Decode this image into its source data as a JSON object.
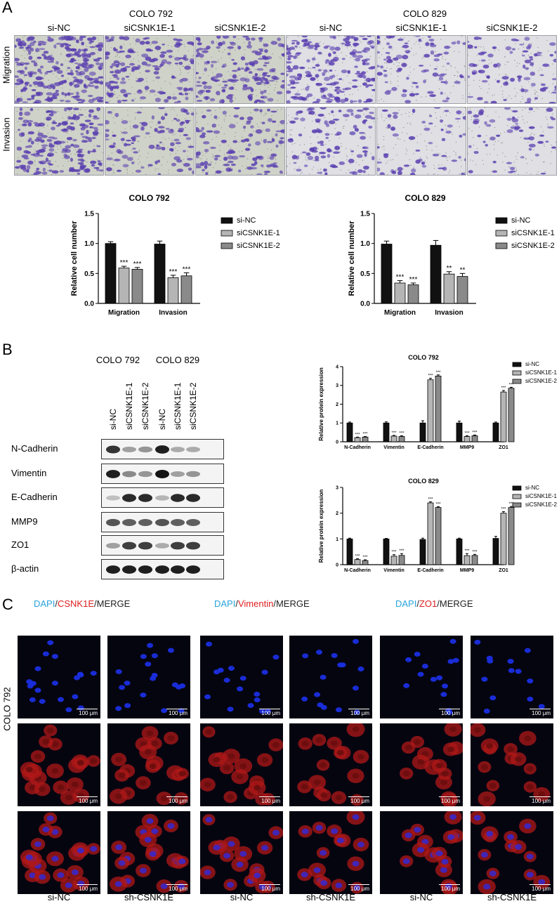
{
  "panelA": {
    "letter": "A",
    "cell_lines": [
      "COLO 792",
      "COLO 829"
    ],
    "column_labels": [
      "si-NC",
      "siCSNK1E-1",
      "siCSNK1E-2",
      "si-NC",
      "siCSNK1E-1",
      "siCSNK1E-2"
    ],
    "row_labels": [
      "Migration",
      "Invasion"
    ],
    "cell_density": [
      [
        0.95,
        0.55,
        0.6,
        0.7,
        0.3,
        0.3
      ],
      [
        0.7,
        0.35,
        0.4,
        0.35,
        0.2,
        0.2
      ]
    ],
    "stain_color": "#5a3fb0"
  },
  "panelB": {
    "letter": "B",
    "cell_lines": [
      "COLO 792",
      "COLO 829"
    ],
    "lane_labels": [
      "si-NC",
      "siCSNK1E-1",
      "siCSNK1E-2",
      "si-NC",
      "siCSNK1E-1",
      "siCSNK1E-2"
    ],
    "proteins": [
      "N-Cadherin",
      "Vimentin",
      "E-Cadherin",
      "MMP9",
      "ZO1",
      "β-actin"
    ],
    "band_intensity": [
      [
        0.85,
        0.35,
        0.4,
        0.95,
        0.3,
        0.3
      ],
      [
        0.95,
        0.45,
        0.4,
        1.0,
        0.35,
        0.4
      ],
      [
        0.2,
        0.9,
        0.9,
        0.25,
        0.9,
        0.9
      ],
      [
        0.7,
        0.65,
        0.65,
        0.7,
        0.65,
        0.65
      ],
      [
        0.35,
        0.8,
        0.8,
        0.3,
        0.8,
        0.8
      ],
      [
        0.95,
        0.95,
        0.95,
        0.95,
        0.95,
        0.95
      ]
    ]
  },
  "panelC": {
    "letter": "C",
    "groups": [
      {
        "dapi": "DAPI",
        "marker": "CSNK1E",
        "merge": "MERGE"
      },
      {
        "dapi": "DAPI",
        "marker": "Vimentin",
        "merge": "MERGE"
      },
      {
        "dapi": "DAPI",
        "marker": "ZO1",
        "merge": "MERGE"
      }
    ],
    "separator": "/",
    "row_label": "COLO 792",
    "column_labels": [
      "si-NC",
      "sh-CSNK1E",
      "si-NC",
      "sh-CSNK1E",
      "si-NC",
      "sh-CSNK1E"
    ],
    "scale_bar": "100 μm",
    "colors": {
      "dapi": "#29a3dc",
      "marker": "#e02020",
      "merge": "#222222"
    }
  },
  "chart_data": [
    {
      "type": "bar",
      "title": "COLO 792",
      "ylabel": "Relative cell number",
      "xlabel": "",
      "categories": [
        "Migration",
        "Invasion"
      ],
      "ylim": [
        0,
        1.5
      ],
      "yticks": [
        "0.0",
        "0.5",
        "1.0",
        "1.5"
      ],
      "series": [
        {
          "name": "si-NC",
          "values": [
            1.0,
            0.99
          ],
          "errors": [
            0.03,
            0.05
          ],
          "color": "#111111"
        },
        {
          "name": "siCSNK1E-1",
          "values": [
            0.59,
            0.43
          ],
          "errors": [
            0.03,
            0.04
          ],
          "color": "#b5b5b5"
        },
        {
          "name": "siCSNK1E-2",
          "values": [
            0.57,
            0.46
          ],
          "errors": [
            0.03,
            0.05
          ],
          "color": "#8a8a8a"
        }
      ],
      "significance": [
        [
          "",
          "***",
          "***"
        ],
        [
          "",
          "***",
          "***"
        ]
      ],
      "legend": "right"
    },
    {
      "type": "bar",
      "title": "COLO 829",
      "ylabel": "Relative cell number",
      "xlabel": "",
      "categories": [
        "Migration",
        "Invasion"
      ],
      "ylim": [
        0,
        1.5
      ],
      "yticks": [
        "0.0",
        "0.5",
        "1.0",
        "1.5"
      ],
      "series": [
        {
          "name": "si-NC",
          "values": [
            0.99,
            0.97
          ],
          "errors": [
            0.05,
            0.08
          ],
          "color": "#111111"
        },
        {
          "name": "siCSNK1E-1",
          "values": [
            0.34,
            0.49
          ],
          "errors": [
            0.04,
            0.04
          ],
          "color": "#b5b5b5"
        },
        {
          "name": "siCSNK1E-2",
          "values": [
            0.31,
            0.45
          ],
          "errors": [
            0.03,
            0.05
          ],
          "color": "#8a8a8a"
        }
      ],
      "significance": [
        [
          "",
          "***",
          "***"
        ],
        [
          "",
          "**",
          "**"
        ]
      ],
      "legend": "right"
    },
    {
      "type": "bar",
      "title": "COLO 792",
      "ylabel": "Relative protein expression",
      "xlabel": "",
      "categories": [
        "N-Cadherin",
        "Vimentin",
        "E-Cadherin",
        "MMP9",
        "ZO1"
      ],
      "ylim": [
        0,
        4
      ],
      "yticks": [
        "0",
        "1",
        "2",
        "3",
        "4"
      ],
      "series": [
        {
          "name": "si-NC",
          "values": [
            1.0,
            1.0,
            1.0,
            1.0,
            1.0
          ],
          "errors": [
            0.05,
            0.06,
            0.12,
            0.1,
            0.05
          ],
          "color": "#111111"
        },
        {
          "name": "siCSNK1E-1",
          "values": [
            0.22,
            0.3,
            3.3,
            0.28,
            2.65
          ],
          "errors": [
            0.03,
            0.04,
            0.08,
            0.04,
            0.08
          ],
          "color": "#b5b5b5"
        },
        {
          "name": "siCSNK1E-2",
          "values": [
            0.25,
            0.28,
            3.5,
            0.32,
            2.85
          ],
          "errors": [
            0.03,
            0.04,
            0.06,
            0.04,
            0.05
          ],
          "color": "#8a8a8a"
        }
      ],
      "significance": [
        [
          "",
          "***",
          "***"
        ],
        [
          "",
          "***",
          "***"
        ],
        [
          "",
          "***",
          "***"
        ],
        [
          "",
          "***",
          "***"
        ],
        [
          "",
          "***",
          "***"
        ]
      ],
      "legend": "right"
    },
    {
      "type": "bar",
      "title": "COLO 829",
      "ylabel": "Relative protein expression",
      "xlabel": "",
      "categories": [
        "N-Cadherin",
        "Vimentin",
        "E-Cadherin",
        "MMP9",
        "ZO1"
      ],
      "ylim": [
        0,
        3
      ],
      "yticks": [
        "0",
        "1",
        "2",
        "3"
      ],
      "series": [
        {
          "name": "si-NC",
          "values": [
            1.0,
            1.0,
            0.98,
            1.0,
            1.02
          ],
          "errors": [
            0.03,
            0.02,
            0.05,
            0.03,
            0.08
          ],
          "color": "#111111"
        },
        {
          "name": "siCSNK1E-1",
          "values": [
            0.2,
            0.33,
            2.4,
            0.35,
            2.0
          ],
          "errors": [
            0.03,
            0.06,
            0.04,
            0.08,
            0.06
          ],
          "color": "#b5b5b5"
        },
        {
          "name": "siCSNK1E-2",
          "values": [
            0.16,
            0.36,
            2.22,
            0.36,
            2.22
          ],
          "errors": [
            0.03,
            0.07,
            0.03,
            0.04,
            0.04
          ],
          "color": "#8a8a8a"
        }
      ],
      "significance": [
        [
          "",
          "***",
          "***"
        ],
        [
          "",
          "***",
          "***"
        ],
        [
          "",
          "***",
          "***"
        ],
        [
          "",
          "***",
          "***"
        ],
        [
          "",
          "***",
          "***"
        ]
      ],
      "legend": "right"
    }
  ]
}
